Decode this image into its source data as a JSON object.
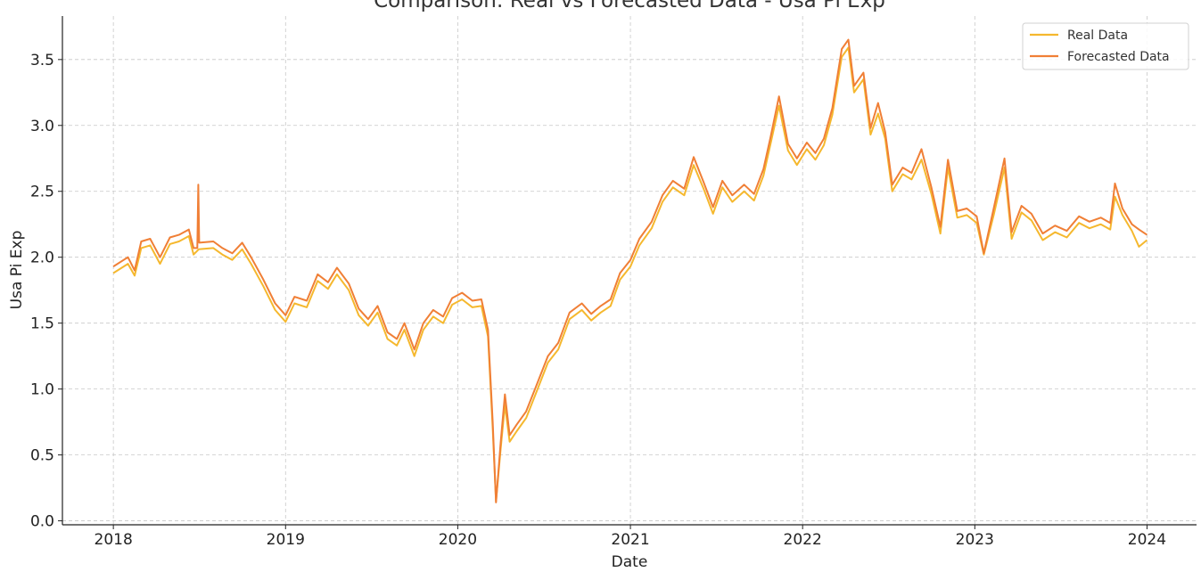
{
  "chart_data": {
    "type": "line",
    "title": "Comparison: Real vs Forecasted Data - Usa Pi Exp",
    "xlabel": "Date",
    "ylabel": "Usa Pi Exp",
    "xlim": [
      "2017-09-15",
      "2024-04-15"
    ],
    "ylim": [
      -0.03,
      3.83
    ],
    "x_ticks": [
      "2018",
      "2019",
      "2020",
      "2021",
      "2022",
      "2023",
      "2024"
    ],
    "y_ticks": [
      "0.0",
      "0.5",
      "1.0",
      "1.5",
      "2.0",
      "2.5",
      "3.0",
      "3.5"
    ],
    "grid": true,
    "legend_position": "top-right",
    "series": [
      {
        "name": "Real Data",
        "color": "#f5b82e",
        "points": [
          [
            "2018-01-01",
            1.88
          ],
          [
            "2018-02-01",
            1.95
          ],
          [
            "2018-02-15",
            1.86
          ],
          [
            "2018-03-01",
            2.07
          ],
          [
            "2018-03-20",
            2.09
          ],
          [
            "2018-04-10",
            1.95
          ],
          [
            "2018-05-01",
            2.1
          ],
          [
            "2018-05-20",
            2.12
          ],
          [
            "2018-06-10",
            2.16
          ],
          [
            "2018-06-20",
            2.02
          ],
          [
            "2018-07-01",
            2.06
          ],
          [
            "2018-08-01",
            2.07
          ],
          [
            "2018-08-20",
            2.02
          ],
          [
            "2018-09-10",
            1.98
          ],
          [
            "2018-10-01",
            2.06
          ],
          [
            "2018-10-20",
            1.95
          ],
          [
            "2018-11-15",
            1.78
          ],
          [
            "2018-12-10",
            1.6
          ],
          [
            "2019-01-01",
            1.51
          ],
          [
            "2019-01-20",
            1.65
          ],
          [
            "2019-02-15",
            1.62
          ],
          [
            "2019-03-10",
            1.82
          ],
          [
            "2019-04-01",
            1.76
          ],
          [
            "2019-04-20",
            1.87
          ],
          [
            "2019-05-15",
            1.75
          ],
          [
            "2019-06-05",
            1.56
          ],
          [
            "2019-06-25",
            1.48
          ],
          [
            "2019-07-15",
            1.58
          ],
          [
            "2019-08-05",
            1.38
          ],
          [
            "2019-08-25",
            1.33
          ],
          [
            "2019-09-10",
            1.45
          ],
          [
            "2019-10-01",
            1.25
          ],
          [
            "2019-10-20",
            1.45
          ],
          [
            "2019-11-10",
            1.55
          ],
          [
            "2019-12-01",
            1.5
          ],
          [
            "2019-12-20",
            1.64
          ],
          [
            "2020-01-10",
            1.68
          ],
          [
            "2020-02-01",
            1.62
          ],
          [
            "2020-02-20",
            1.63
          ],
          [
            "2020-03-05",
            1.4
          ],
          [
            "2020-03-15",
            0.7
          ],
          [
            "2020-03-22",
            0.15
          ],
          [
            "2020-04-01",
            0.55
          ],
          [
            "2020-04-10",
            0.88
          ],
          [
            "2020-04-20",
            0.6
          ],
          [
            "2020-05-05",
            0.68
          ],
          [
            "2020-05-25",
            0.78
          ],
          [
            "2020-06-15",
            0.97
          ],
          [
            "2020-07-10",
            1.2
          ],
          [
            "2020-08-01",
            1.3
          ],
          [
            "2020-08-25",
            1.53
          ],
          [
            "2020-09-20",
            1.6
          ],
          [
            "2020-10-10",
            1.52
          ],
          [
            "2020-10-30",
            1.58
          ],
          [
            "2020-11-20",
            1.63
          ],
          [
            "2020-12-10",
            1.83
          ],
          [
            "2021-01-01",
            1.93
          ],
          [
            "2021-01-20",
            2.09
          ],
          [
            "2021-02-15",
            2.22
          ],
          [
            "2021-03-10",
            2.42
          ],
          [
            "2021-04-01",
            2.53
          ],
          [
            "2021-04-25",
            2.47
          ],
          [
            "2021-05-15",
            2.7
          ],
          [
            "2021-06-05",
            2.52
          ],
          [
            "2021-06-25",
            2.33
          ],
          [
            "2021-07-15",
            2.53
          ],
          [
            "2021-08-05",
            2.42
          ],
          [
            "2021-08-30",
            2.5
          ],
          [
            "2021-09-20",
            2.43
          ],
          [
            "2021-10-10",
            2.62
          ],
          [
            "2021-10-25",
            2.86
          ],
          [
            "2021-11-12",
            3.15
          ],
          [
            "2021-12-01",
            2.81
          ],
          [
            "2021-12-20",
            2.7
          ],
          [
            "2022-01-10",
            2.82
          ],
          [
            "2022-01-28",
            2.74
          ],
          [
            "2022-02-15",
            2.85
          ],
          [
            "2022-03-05",
            3.08
          ],
          [
            "2022-03-25",
            3.52
          ],
          [
            "2022-04-08",
            3.59
          ],
          [
            "2022-04-20",
            3.25
          ],
          [
            "2022-05-10",
            3.35
          ],
          [
            "2022-05-25",
            2.93
          ],
          [
            "2022-06-10",
            3.09
          ],
          [
            "2022-06-25",
            2.9
          ],
          [
            "2022-07-10",
            2.5
          ],
          [
            "2022-08-01",
            2.63
          ],
          [
            "2022-08-20",
            2.59
          ],
          [
            "2022-09-10",
            2.74
          ],
          [
            "2022-10-01",
            2.48
          ],
          [
            "2022-10-20",
            2.18
          ],
          [
            "2022-11-05",
            2.68
          ],
          [
            "2022-11-25",
            2.3
          ],
          [
            "2022-12-15",
            2.32
          ],
          [
            "2023-01-05",
            2.26
          ],
          [
            "2023-01-20",
            2.02
          ],
          [
            "2023-02-10",
            2.32
          ],
          [
            "2023-03-05",
            2.68
          ],
          [
            "2023-03-20",
            2.14
          ],
          [
            "2023-04-10",
            2.34
          ],
          [
            "2023-05-01",
            2.28
          ],
          [
            "2023-05-25",
            2.13
          ],
          [
            "2023-06-20",
            2.19
          ],
          [
            "2023-07-15",
            2.15
          ],
          [
            "2023-08-10",
            2.26
          ],
          [
            "2023-09-01",
            2.22
          ],
          [
            "2023-09-25",
            2.25
          ],
          [
            "2023-10-15",
            2.21
          ],
          [
            "2023-10-25",
            2.46
          ],
          [
            "2023-11-10",
            2.32
          ],
          [
            "2023-11-30",
            2.2
          ],
          [
            "2023-12-15",
            2.08
          ],
          [
            "2024-01-01",
            2.13
          ]
        ]
      },
      {
        "name": "Forecasted Data",
        "color": "#f07f36",
        "points": [
          [
            "2018-01-01",
            1.93
          ],
          [
            "2018-02-01",
            2.0
          ],
          [
            "2018-02-15",
            1.9
          ],
          [
            "2018-03-01",
            2.12
          ],
          [
            "2018-03-20",
            2.14
          ],
          [
            "2018-04-10",
            2.0
          ],
          [
            "2018-05-01",
            2.15
          ],
          [
            "2018-05-20",
            2.17
          ],
          [
            "2018-06-10",
            2.21
          ],
          [
            "2018-06-20",
            2.07
          ],
          [
            "2018-06-28",
            2.07
          ],
          [
            "2018-06-30",
            2.55
          ],
          [
            "2018-07-02",
            2.11
          ],
          [
            "2018-08-01",
            2.12
          ],
          [
            "2018-08-20",
            2.07
          ],
          [
            "2018-09-10",
            2.03
          ],
          [
            "2018-10-01",
            2.11
          ],
          [
            "2018-10-20",
            2.0
          ],
          [
            "2018-11-15",
            1.83
          ],
          [
            "2018-12-10",
            1.65
          ],
          [
            "2019-01-01",
            1.56
          ],
          [
            "2019-01-20",
            1.7
          ],
          [
            "2019-02-15",
            1.67
          ],
          [
            "2019-03-10",
            1.87
          ],
          [
            "2019-04-01",
            1.81
          ],
          [
            "2019-04-20",
            1.92
          ],
          [
            "2019-05-15",
            1.8
          ],
          [
            "2019-06-05",
            1.61
          ],
          [
            "2019-06-25",
            1.53
          ],
          [
            "2019-07-15",
            1.63
          ],
          [
            "2019-08-05",
            1.43
          ],
          [
            "2019-08-25",
            1.38
          ],
          [
            "2019-09-10",
            1.5
          ],
          [
            "2019-10-01",
            1.3
          ],
          [
            "2019-10-20",
            1.5
          ],
          [
            "2019-11-10",
            1.6
          ],
          [
            "2019-12-01",
            1.55
          ],
          [
            "2019-12-20",
            1.69
          ],
          [
            "2020-01-10",
            1.73
          ],
          [
            "2020-02-01",
            1.67
          ],
          [
            "2020-02-20",
            1.68
          ],
          [
            "2020-03-05",
            1.45
          ],
          [
            "2020-03-15",
            0.75
          ],
          [
            "2020-03-22",
            0.14
          ],
          [
            "2020-04-01",
            0.6
          ],
          [
            "2020-04-10",
            0.96
          ],
          [
            "2020-04-20",
            0.65
          ],
          [
            "2020-05-05",
            0.73
          ],
          [
            "2020-05-25",
            0.83
          ],
          [
            "2020-06-15",
            1.02
          ],
          [
            "2020-07-10",
            1.25
          ],
          [
            "2020-08-01",
            1.35
          ],
          [
            "2020-08-25",
            1.58
          ],
          [
            "2020-09-20",
            1.65
          ],
          [
            "2020-10-10",
            1.57
          ],
          [
            "2020-10-30",
            1.63
          ],
          [
            "2020-11-20",
            1.68
          ],
          [
            "2020-12-10",
            1.88
          ],
          [
            "2021-01-01",
            1.98
          ],
          [
            "2021-01-20",
            2.14
          ],
          [
            "2021-02-15",
            2.27
          ],
          [
            "2021-03-10",
            2.47
          ],
          [
            "2021-04-01",
            2.58
          ],
          [
            "2021-04-25",
            2.52
          ],
          [
            "2021-05-15",
            2.76
          ],
          [
            "2021-06-05",
            2.57
          ],
          [
            "2021-06-25",
            2.38
          ],
          [
            "2021-07-15",
            2.58
          ],
          [
            "2021-08-05",
            2.47
          ],
          [
            "2021-08-30",
            2.55
          ],
          [
            "2021-09-20",
            2.48
          ],
          [
            "2021-10-10",
            2.67
          ],
          [
            "2021-10-25",
            2.91
          ],
          [
            "2021-11-12",
            3.22
          ],
          [
            "2021-12-01",
            2.86
          ],
          [
            "2021-12-20",
            2.75
          ],
          [
            "2022-01-10",
            2.87
          ],
          [
            "2022-01-28",
            2.79
          ],
          [
            "2022-02-15",
            2.9
          ],
          [
            "2022-03-05",
            3.13
          ],
          [
            "2022-03-25",
            3.58
          ],
          [
            "2022-04-08",
            3.65
          ],
          [
            "2022-04-20",
            3.3
          ],
          [
            "2022-05-10",
            3.4
          ],
          [
            "2022-05-25",
            2.98
          ],
          [
            "2022-06-10",
            3.17
          ],
          [
            "2022-06-25",
            2.95
          ],
          [
            "2022-07-10",
            2.55
          ],
          [
            "2022-08-01",
            2.68
          ],
          [
            "2022-08-20",
            2.64
          ],
          [
            "2022-09-10",
            2.82
          ],
          [
            "2022-10-01",
            2.53
          ],
          [
            "2022-10-20",
            2.23
          ],
          [
            "2022-11-05",
            2.74
          ],
          [
            "2022-11-25",
            2.35
          ],
          [
            "2022-12-15",
            2.37
          ],
          [
            "2023-01-05",
            2.31
          ],
          [
            "2023-01-20",
            2.03
          ],
          [
            "2023-02-10",
            2.37
          ],
          [
            "2023-03-05",
            2.75
          ],
          [
            "2023-03-20",
            2.19
          ],
          [
            "2023-04-10",
            2.39
          ],
          [
            "2023-05-01",
            2.33
          ],
          [
            "2023-05-25",
            2.18
          ],
          [
            "2023-06-20",
            2.24
          ],
          [
            "2023-07-15",
            2.2
          ],
          [
            "2023-08-10",
            2.31
          ],
          [
            "2023-09-01",
            2.27
          ],
          [
            "2023-09-25",
            2.3
          ],
          [
            "2023-10-15",
            2.26
          ],
          [
            "2023-10-25",
            2.56
          ],
          [
            "2023-11-10",
            2.37
          ],
          [
            "2023-11-30",
            2.25
          ],
          [
            "2023-12-15",
            2.21
          ],
          [
            "2024-01-01",
            2.17
          ]
        ]
      }
    ]
  }
}
